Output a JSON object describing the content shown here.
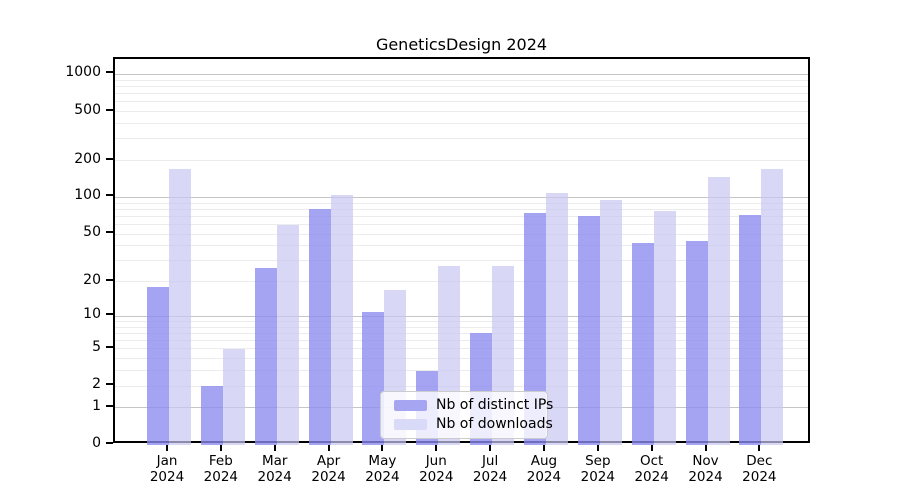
{
  "title": "GeneticsDesign 2024",
  "legend": {
    "items": [
      {
        "label": "Nb of distinct IPs",
        "color": "#a5a5f1"
      },
      {
        "label": "Nb of downloads",
        "color": "#d9d9f8"
      }
    ]
  },
  "y_axis": {
    "tick_labels": [
      "0",
      "1",
      "2",
      "5",
      "10",
      "20",
      "50",
      "100",
      "200",
      "500",
      "1000"
    ],
    "tick_values": [
      0,
      1,
      2,
      5,
      10,
      20,
      50,
      100,
      200,
      500,
      1000
    ],
    "major_grid_values": [
      1,
      10,
      100,
      1000
    ],
    "minor_grid_values": [
      2,
      3,
      4,
      5,
      6,
      7,
      8,
      9,
      20,
      30,
      40,
      50,
      60,
      70,
      80,
      90,
      200,
      300,
      400,
      500,
      600,
      700,
      800,
      900
    ]
  },
  "x_axis": {
    "ticks": [
      {
        "month": "Jan",
        "year": "2024"
      },
      {
        "month": "Feb",
        "year": "2024"
      },
      {
        "month": "Mar",
        "year": "2024"
      },
      {
        "month": "Apr",
        "year": "2024"
      },
      {
        "month": "May",
        "year": "2024"
      },
      {
        "month": "Jun",
        "year": "2024"
      },
      {
        "month": "Jul",
        "year": "2024"
      },
      {
        "month": "Aug",
        "year": "2024"
      },
      {
        "month": "Sep",
        "year": "2024"
      },
      {
        "month": "Oct",
        "year": "2024"
      },
      {
        "month": "Nov",
        "year": "2024"
      },
      {
        "month": "Dec",
        "year": "2024"
      }
    ]
  },
  "chart_data": {
    "type": "bar",
    "title": "GeneticsDesign 2024",
    "categories": [
      "Jan 2024",
      "Feb 2024",
      "Mar 2024",
      "Apr 2024",
      "May 2024",
      "Jun 2024",
      "Jul 2024",
      "Aug 2024",
      "Sep 2024",
      "Oct 2024",
      "Nov 2024",
      "Dec 2024"
    ],
    "series": [
      {
        "name": "Nb of distinct IPs",
        "color": "#a5a5f1",
        "fill": "rgba(138,138,238,0.78)",
        "values": [
          18,
          2,
          26,
          80,
          11,
          3,
          7,
          75,
          70,
          42,
          44,
          72
        ]
      },
      {
        "name": "Nb of downloads",
        "color": "#d9d9f8",
        "fill": "rgba(200,200,242,0.70)",
        "values": [
          172,
          5,
          60,
          104,
          17,
          27,
          27,
          108,
          95,
          78,
          148,
          170
        ]
      }
    ],
    "xlabel": "",
    "ylabel": "",
    "yscale": "log10(value+1)",
    "ylim": [
      0,
      1228
    ],
    "y_ticks": [
      0,
      1,
      2,
      5,
      10,
      20,
      50,
      100,
      200,
      500,
      1000
    ],
    "grid": true,
    "legend_position": "lower center"
  }
}
